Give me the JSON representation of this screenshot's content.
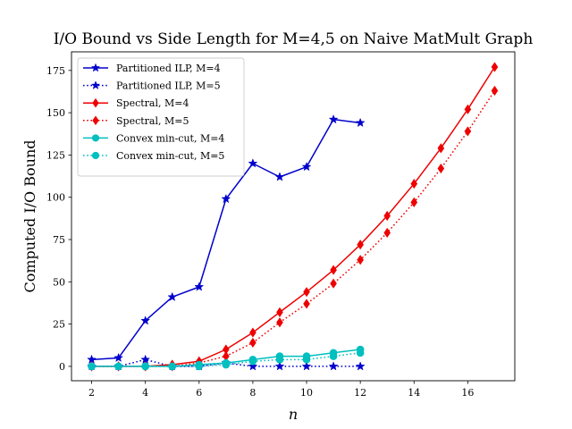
{
  "chart_data": {
    "type": "line",
    "title": "I/O Bound vs Side Length for M=4,5 on Naive MatMult Graph",
    "xlabel": "n",
    "ylabel": "Computed I/O Bound",
    "xlim": [
      1.25,
      17.75
    ],
    "ylim": [
      -8.5,
      186
    ],
    "xticks": [
      2,
      4,
      6,
      8,
      10,
      12,
      14,
      16
    ],
    "yticks": [
      0,
      25,
      50,
      75,
      100,
      125,
      150,
      175
    ],
    "grid": false,
    "legend_position": "upper-left",
    "series": [
      {
        "name": "Partitioned ILP, M=4",
        "color": "#0000cc",
        "dash": "solid",
        "marker": "star",
        "x": [
          2,
          3,
          4,
          5,
          6,
          7,
          8,
          9,
          10,
          11,
          12
        ],
        "y": [
          4,
          5,
          27,
          41,
          47,
          99,
          120,
          112,
          118,
          146,
          144
        ]
      },
      {
        "name": "Partitioned ILP, M=5",
        "color": "#0000cc",
        "dash": "dotted",
        "marker": "star",
        "x": [
          2,
          3,
          4,
          5,
          6,
          7,
          8,
          9,
          10,
          11,
          12
        ],
        "y": [
          0,
          0,
          4,
          0,
          0,
          2,
          0,
          0,
          0,
          0,
          0
        ]
      },
      {
        "name": "Spectral, M=4",
        "color": "#ee0000",
        "dash": "solid",
        "marker": "diamond",
        "x": [
          2,
          3,
          4,
          5,
          6,
          7,
          8,
          9,
          10,
          11,
          12,
          13,
          14,
          15,
          16,
          17
        ],
        "y": [
          0,
          0,
          0,
          1,
          3,
          10,
          20,
          32,
          44,
          57,
          72,
          89,
          108,
          129,
          152,
          177
        ]
      },
      {
        "name": "Spectral, M=5",
        "color": "#ee0000",
        "dash": "dotted",
        "marker": "diamond",
        "x": [
          2,
          3,
          4,
          5,
          6,
          7,
          8,
          9,
          10,
          11,
          12,
          13,
          14,
          15,
          16,
          17
        ],
        "y": [
          0,
          0,
          0,
          0,
          2,
          6,
          14,
          26,
          37,
          49,
          63,
          79,
          97,
          117,
          139,
          163
        ]
      },
      {
        "name": "Convex min-cut, M=4",
        "color": "#00bfbf",
        "dash": "solid",
        "marker": "circle",
        "x": [
          2,
          3,
          4,
          5,
          6,
          7,
          8,
          9,
          10,
          11,
          12
        ],
        "y": [
          0,
          0,
          0,
          0,
          1,
          2,
          4,
          6,
          6,
          8,
          10
        ]
      },
      {
        "name": "Convex min-cut, M=5",
        "color": "#00bfbf",
        "dash": "dotted",
        "marker": "circle",
        "x": [
          2,
          3,
          4,
          5,
          6,
          7,
          8,
          9,
          10,
          11,
          12
        ],
        "y": [
          0,
          0,
          0,
          0,
          0,
          1,
          3,
          4,
          4,
          6,
          8
        ]
      }
    ]
  }
}
